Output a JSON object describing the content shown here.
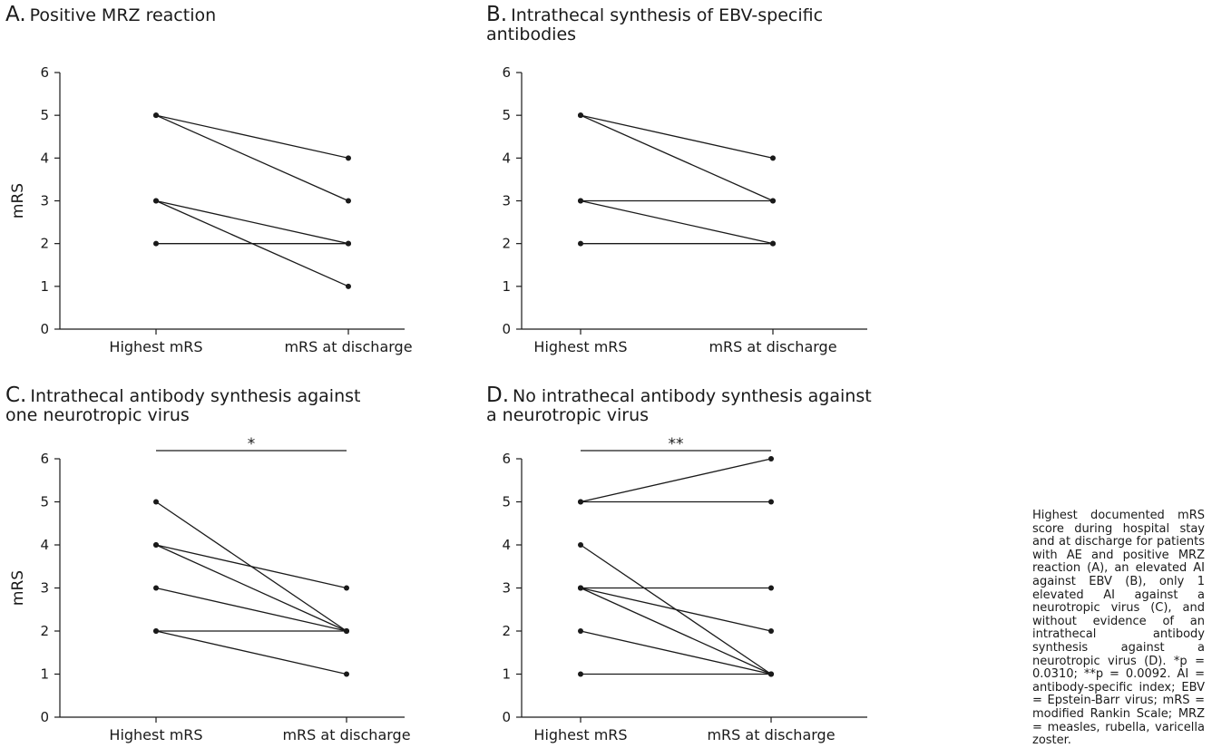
{
  "caption": "Highest documented mRS score during hospital stay and at discharge for patients with AE and positive MRZ reaction (A), an elevated AI against EBV (B), only 1 elevated AI against a neurotropic virus (C), and without evidence of an intrathecal antibody synthesis against a neurotropic virus (D). *p = 0.0310; **p = 0.0092. AI = antibody-specific index; EBV = Epstein-Barr virus; mRS = modified Rankin Scale; MRZ = measles, rubella, varicella zoster.",
  "chart_data": [
    {
      "panel": "A.",
      "type": "line",
      "title": "Positive MRZ reaction",
      "ylabel": "mRS",
      "categories": [
        "Highest mRS",
        "mRS at discharge"
      ],
      "ylim": [
        0,
        6
      ],
      "yticks": [
        "0",
        "1",
        "2",
        "3",
        "4",
        "5",
        "6"
      ],
      "pairs": [
        [
          5,
          4
        ],
        [
          5,
          3
        ],
        [
          3,
          2
        ],
        [
          3,
          1
        ],
        [
          2,
          2
        ]
      ],
      "significance": ""
    },
    {
      "panel": "B.",
      "type": "line",
      "title": "Intrathecal synthesis of EBV-specific\nantibodies",
      "ylabel": "",
      "categories": [
        "Highest mRS",
        "mRS at discharge"
      ],
      "ylim": [
        0,
        6
      ],
      "yticks": [
        "0",
        "1",
        "2",
        "3",
        "4",
        "5",
        "6"
      ],
      "pairs": [
        [
          5,
          4
        ],
        [
          5,
          3
        ],
        [
          3,
          3
        ],
        [
          3,
          2
        ],
        [
          2,
          2
        ]
      ],
      "significance": ""
    },
    {
      "panel": "C.",
      "type": "line",
      "title": "Intrathecal antibody synthesis against\none neurotropic virus",
      "ylabel": "mRS",
      "categories": [
        "Highest mRS",
        "mRS at discharge"
      ],
      "ylim": [
        0,
        6
      ],
      "yticks": [
        "0",
        "1",
        "2",
        "3",
        "4",
        "5",
        "6"
      ],
      "pairs": [
        [
          5,
          2
        ],
        [
          4,
          3
        ],
        [
          4,
          2
        ],
        [
          3,
          2
        ],
        [
          2,
          2
        ],
        [
          2,
          1
        ]
      ],
      "significance": "*"
    },
    {
      "panel": "D.",
      "type": "line",
      "title": "No intrathecal antibody synthesis against\na neurotropic virus",
      "ylabel": "",
      "categories": [
        "Highest mRS",
        "mRS at discharge"
      ],
      "ylim": [
        0,
        6
      ],
      "yticks": [
        "0",
        "1",
        "2",
        "3",
        "4",
        "5",
        "6"
      ],
      "pairs": [
        [
          5,
          6
        ],
        [
          5,
          5
        ],
        [
          4,
          1
        ],
        [
          3,
          3
        ],
        [
          3,
          2
        ],
        [
          3,
          1
        ],
        [
          2,
          1
        ],
        [
          1,
          1
        ]
      ],
      "significance": "**"
    }
  ]
}
